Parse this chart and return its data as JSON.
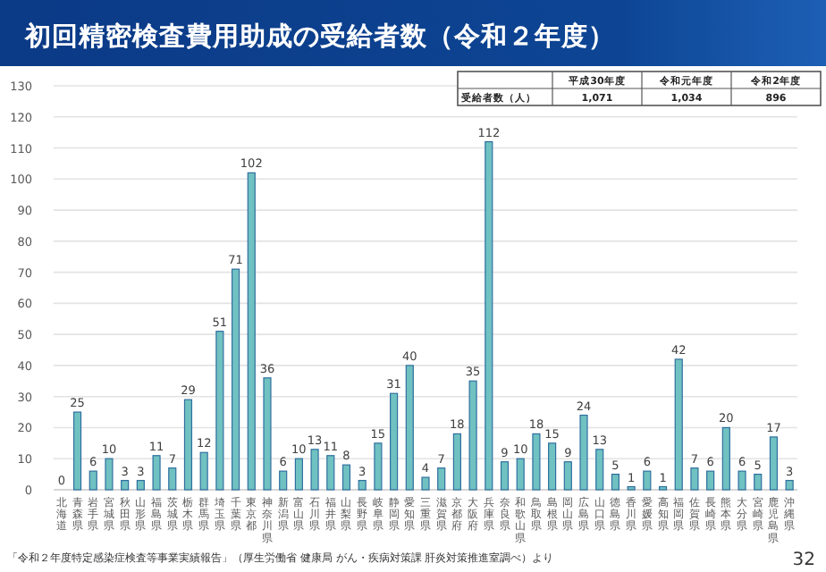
{
  "chart_data": {
    "type": "bar",
    "title": "初回精密検査費用助成の受給者数（令和２年度）",
    "categories": [
      "北海道",
      "青森県",
      "岩手県",
      "宮城県",
      "秋田県",
      "山形県",
      "福島県",
      "茨城県",
      "栃木県",
      "群馬県",
      "埼玉県",
      "千葉県",
      "東京都",
      "神奈川県",
      "新潟県",
      "富山県",
      "石川県",
      "福井県",
      "山梨県",
      "長野県",
      "岐阜県",
      "静岡県",
      "愛知県",
      "三重県",
      "滋賀県",
      "京都府",
      "大阪府",
      "兵庫県",
      "奈良県",
      "和歌山県",
      "鳥取県",
      "島根県",
      "岡山県",
      "広島県",
      "山口県",
      "徳島県",
      "香川県",
      "愛媛県",
      "高知県",
      "福岡県",
      "佐賀県",
      "長崎県",
      "熊本県",
      "大分県",
      "宮崎県",
      "鹿児島県",
      "沖縄県"
    ],
    "values": [
      0,
      25,
      6,
      10,
      3,
      3,
      11,
      7,
      29,
      12,
      51,
      71,
      102,
      36,
      6,
      10,
      13,
      11,
      8,
      3,
      15,
      31,
      40,
      4,
      7,
      18,
      35,
      112,
      9,
      10,
      18,
      15,
      9,
      24,
      13,
      5,
      1,
      6,
      1,
      42,
      7,
      6,
      20,
      6,
      5,
      17,
      3
    ],
    "color": "#70c1c1",
    "ylim": [
      0,
      130
    ],
    "yticks": [
      0,
      10,
      20,
      30,
      40,
      50,
      60,
      70,
      80,
      90,
      100,
      110,
      120,
      130
    ],
    "grid": "y",
    "data_labels": true,
    "annotations": [
      "「令和２年度特定感染症検査等事業実績報告」（厚生労働省 健康局 がん・疾病対策課 肝炎対策推進室調べ）より",
      "32",
      "平成30年度",
      "令和元年度",
      "令和2年度",
      "受給者数（人）",
      "1,071",
      "1,034",
      "896"
    ]
  }
}
